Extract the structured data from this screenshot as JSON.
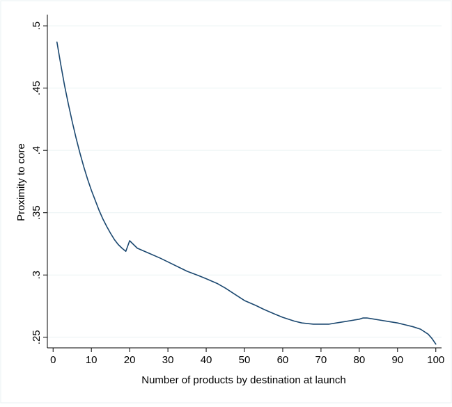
{
  "chart_data": {
    "type": "line",
    "title": "",
    "xlabel": "Number of products by destination at launch",
    "ylabel": "Proximity to core",
    "xlim": [
      -1.5,
      101.5
    ],
    "ylim": [
      0.2415,
      0.509
    ],
    "grid": true,
    "legend": "none",
    "x_ticks": [
      0,
      10,
      20,
      30,
      40,
      50,
      60,
      70,
      80,
      90,
      100
    ],
    "x_tick_labels": [
      "0",
      "10",
      "20",
      "30",
      "40",
      "50",
      "60",
      "70",
      "80",
      "90",
      "100"
    ],
    "y_ticks": [
      0.25,
      0.3,
      0.35,
      0.4,
      0.45,
      0.5
    ],
    "y_tick_labels": [
      ".25",
      ".3",
      ".35",
      ".4",
      ".45",
      ".5"
    ],
    "line_color": "#1a476f",
    "series": [
      {
        "x": [
          1,
          2,
          3,
          4,
          5,
          6,
          7,
          8,
          9,
          10,
          11,
          12,
          13,
          14,
          15,
          16,
          17,
          18,
          19,
          20,
          22,
          25,
          28,
          30,
          33,
          35,
          38,
          40,
          43,
          45,
          48,
          50,
          53,
          55,
          58,
          60,
          63,
          65,
          68,
          70,
          72,
          74,
          76,
          78,
          80,
          81,
          82,
          84,
          86,
          88,
          90,
          92,
          94,
          96,
          98,
          99,
          100
        ],
        "y": [
          0.487,
          0.469,
          0.452,
          0.437,
          0.423,
          0.41,
          0.398,
          0.387,
          0.377,
          0.368,
          0.36,
          0.352,
          0.345,
          0.339,
          0.3335,
          0.3285,
          0.3245,
          0.3215,
          0.319,
          0.3275,
          0.3215,
          0.3175,
          0.3135,
          0.3105,
          0.306,
          0.303,
          0.2995,
          0.297,
          0.293,
          0.2895,
          0.2835,
          0.2795,
          0.2755,
          0.2725,
          0.2685,
          0.266,
          0.263,
          0.2615,
          0.2605,
          0.2605,
          0.2605,
          0.2615,
          0.2625,
          0.2635,
          0.2645,
          0.2655,
          0.2655,
          0.2645,
          0.2635,
          0.2625,
          0.2615,
          0.26,
          0.2585,
          0.2565,
          0.2525,
          0.249,
          0.2445
        ]
      }
    ]
  }
}
